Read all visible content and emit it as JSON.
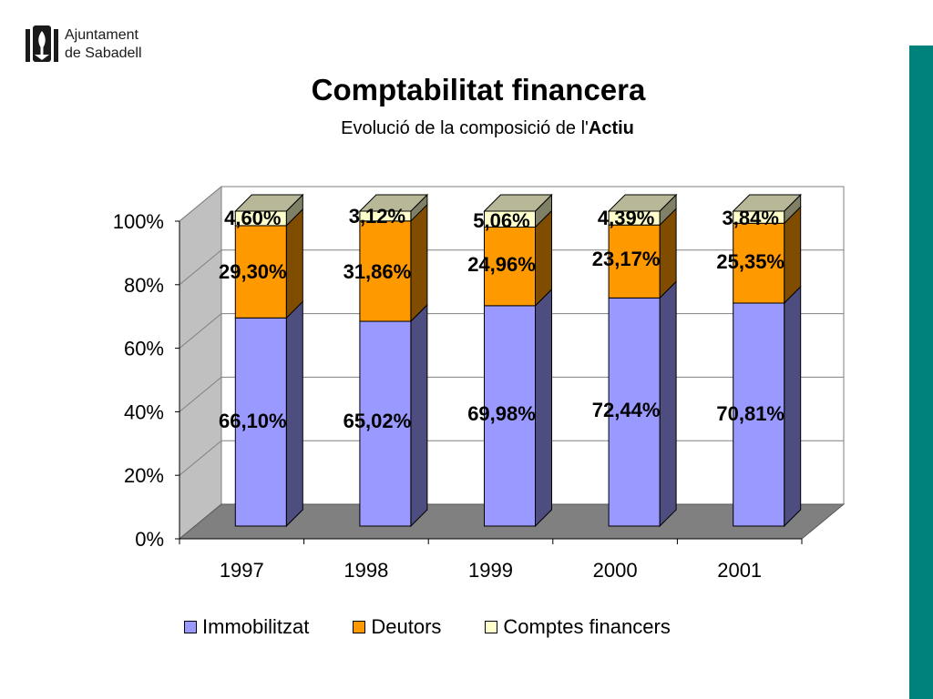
{
  "logo": {
    "line1": "Ajuntament",
    "line2": "de Sabadell"
  },
  "header": {
    "title": "Comptabilitat financera",
    "subtitle_prefix": "Evolució de la composició de l'",
    "subtitle_bold": "Actiu"
  },
  "colors": {
    "accent_bar": "#00827c",
    "immobilitzat": "#9999ff",
    "deutors": "#ff9900",
    "comptes_financers": "#ffffcc"
  },
  "chart_data": {
    "type": "bar",
    "stacked": true,
    "percent_stacked": true,
    "three_d": true,
    "categories": [
      "1997",
      "1998",
      "1999",
      "2000",
      "2001"
    ],
    "series": [
      {
        "name": "Immobilitzat",
        "values": [
          66.1,
          65.02,
          69.98,
          72.44,
          70.81
        ],
        "labels": [
          "66,10%",
          "65,02%",
          "69,98%",
          "72,44%",
          "70,81%"
        ],
        "color": "#9999ff"
      },
      {
        "name": "Deutors",
        "values": [
          29.3,
          31.86,
          24.96,
          23.17,
          25.35
        ],
        "labels": [
          "29,30%",
          "31,86%",
          "24,96%",
          "23,17%",
          "25,35%"
        ],
        "color": "#ff9900"
      },
      {
        "name": "Comptes financers",
        "values": [
          4.6,
          3.12,
          5.06,
          4.39,
          3.84
        ],
        "labels": [
          "4,60%",
          "3,12%",
          "5,06%",
          "4,39%",
          "3,84%"
        ],
        "color": "#ffffcc"
      }
    ],
    "yticks": [
      "0%",
      "20%",
      "40%",
      "60%",
      "80%",
      "100%"
    ],
    "ylim": [
      0,
      100
    ],
    "grid": true,
    "legend": "bottom"
  }
}
